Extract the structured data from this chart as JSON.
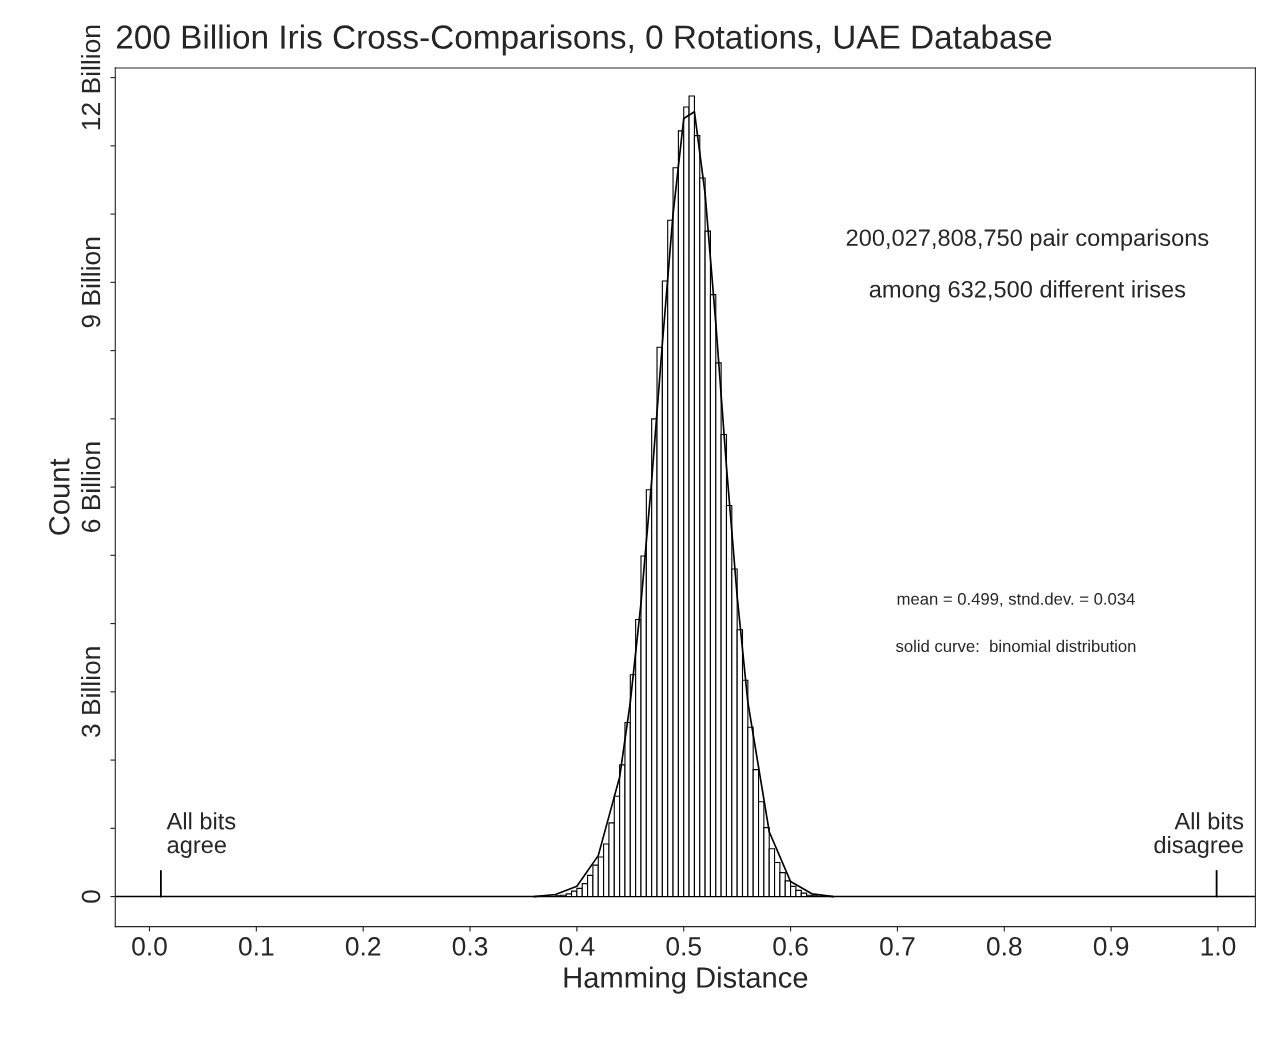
{
  "chart_data": {
    "type": "histogram",
    "title": "200 Billion Iris Cross-Comparisons, 0 Rotations, UAE Database",
    "xlabel": "Hamming Distance",
    "ylabel": "Count",
    "bins": [
      0.38,
      0.385,
      0.39,
      0.395,
      0.4,
      0.405,
      0.41,
      0.415,
      0.42,
      0.425,
      0.43,
      0.435,
      0.44,
      0.445,
      0.45,
      0.455,
      0.46,
      0.465,
      0.47,
      0.475,
      0.48,
      0.485,
      0.49,
      0.495,
      0.5,
      0.505,
      0.51,
      0.515,
      0.52,
      0.525,
      0.53,
      0.535,
      0.54,
      0.545,
      0.55,
      0.555,
      0.56,
      0.565,
      0.57,
      0.575,
      0.58,
      0.585,
      0.59,
      0.595,
      0.6,
      0.605,
      0.61,
      0.615,
      0.62,
      0.625
    ],
    "values": [
      0.01,
      0.02,
      0.04,
      0.08,
      0.12,
      0.19,
      0.31,
      0.46,
      0.58,
      0.77,
      1.08,
      1.47,
      1.93,
      2.55,
      3.25,
      4.06,
      4.99,
      5.96,
      7.0,
      8.05,
      9.02,
      9.91,
      10.68,
      11.22,
      11.57,
      11.73,
      11.15,
      10.53,
      9.75,
      8.82,
      7.82,
      6.77,
      5.73,
      4.8,
      3.91,
      3.17,
      2.48,
      1.86,
      1.39,
      1.01,
      0.7,
      0.5,
      0.35,
      0.23,
      0.15,
      0.09,
      0.05,
      0.02,
      0.01
    ],
    "ref_lines": [
      {
        "axis": "y",
        "value": 0,
        "color": "#000000"
      }
    ],
    "color": "#ffffff",
    "series": [
      {
        "type": "line",
        "color": "#000000",
        "x": [
          0.36,
          0.38,
          0.4,
          0.42,
          0.44,
          0.45,
          0.46,
          0.47,
          0.48,
          0.49,
          0.5,
          0.51,
          0.52,
          0.53,
          0.54,
          0.55,
          0.56,
          0.58,
          0.6,
          0.62,
          0.64
        ],
        "values": [
          0.0,
          0.03,
          0.15,
          0.6,
          1.75,
          2.85,
          4.3,
          6.1,
          8.1,
          10.0,
          11.4,
          11.5,
          10.3,
          8.4,
          6.3,
          4.4,
          2.85,
          0.95,
          0.22,
          0.04,
          0.0
        ]
      }
    ],
    "xlim": [
      -0.032,
      1.035
    ],
    "ylim": [
      -0.44,
      12.14
    ],
    "xticks": [
      {
        "value": 0,
        "label": "0.0"
      },
      0.1,
      0.2,
      0.3,
      0.4,
      0.5,
      0.6,
      0.7,
      0.8,
      0.9,
      {
        "value": 1,
        "label": "1.0"
      }
    ],
    "yticks": [
      0,
      {
        "value": 1,
        "label": null
      },
      {
        "value": 2,
        "label": null
      },
      {
        "value": 3,
        "label": "3 Billion"
      },
      {
        "value": 4,
        "label": null
      },
      {
        "value": 5,
        "label": null
      },
      {
        "value": 6,
        "label": "6 Billion"
      },
      {
        "value": 7,
        "label": null
      },
      {
        "value": 8,
        "label": null
      },
      {
        "value": 9,
        "label": "9 Billion"
      },
      {
        "value": 10,
        "label": null
      },
      {
        "value": 11,
        "label": null
      },
      {
        "value": 12,
        "label": "12 Billion"
      }
    ],
    "grid": false,
    "legend": false,
    "annotations": [
      "All bits\nagree",
      "All bits\ndisagree",
      "200,027,808,750 pair comparisons",
      "among 632,500 different irises",
      "mean = 0.499, stnd.dev. = 0.034",
      "solid curve:  binomial distribution"
    ]
  }
}
